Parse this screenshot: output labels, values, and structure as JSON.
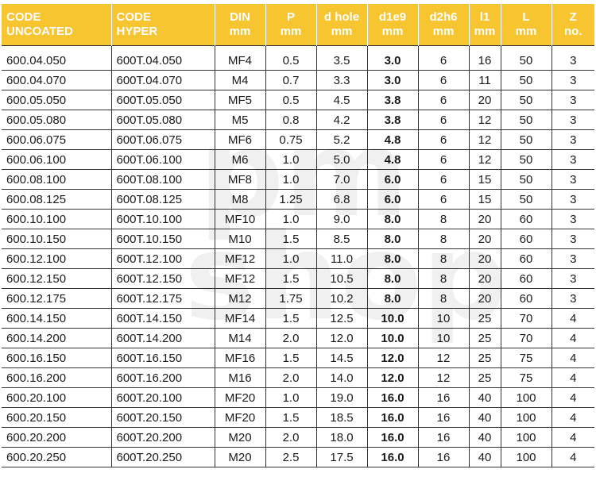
{
  "columns": [
    {
      "line1": "CODE",
      "line2": "UNCOATED"
    },
    {
      "line1": "CODE",
      "line2": "HYPER"
    },
    {
      "line1": "DIN",
      "line2": "mm"
    },
    {
      "line1": "P",
      "line2": "mm"
    },
    {
      "line1": "d hole",
      "line2": "mm"
    },
    {
      "line1": "d1e9",
      "line2": "mm"
    },
    {
      "line1": "d2h6",
      "line2": "mm"
    },
    {
      "line1": "l1",
      "line2": "mm"
    },
    {
      "line1": "L",
      "line2": "mm"
    },
    {
      "line1": "Z",
      "line2": "no."
    }
  ],
  "rows": [
    [
      "600.04.050",
      "600T.04.050",
      "MF4",
      "0.5",
      "3.5",
      "3.0",
      "6",
      "16",
      "50",
      "3"
    ],
    [
      "600.04.070",
      "600T.04.070",
      "M4",
      "0.7",
      "3.3",
      "3.0",
      "6",
      "11",
      "50",
      "3"
    ],
    [
      "600.05.050",
      "600T.05.050",
      "MF5",
      "0.5",
      "4.5",
      "3.8",
      "6",
      "20",
      "50",
      "3"
    ],
    [
      "600.05.080",
      "600T.05.080",
      "M5",
      "0.8",
      "4.2",
      "3.8",
      "6",
      "12",
      "50",
      "3"
    ],
    [
      "600.06.075",
      "600T.06.075",
      "MF6",
      "0.75",
      "5.2",
      "4.8",
      "6",
      "12",
      "50",
      "3"
    ],
    [
      "600.06.100",
      "600T.06.100",
      "M6",
      "1.0",
      "5.0",
      "4.8",
      "6",
      "12",
      "50",
      "3"
    ],
    [
      "600.08.100",
      "600T.08.100",
      "MF8",
      "1.0",
      "7.0",
      "6.0",
      "6",
      "15",
      "50",
      "3"
    ],
    [
      "600.08.125",
      "600T.08.125",
      "M8",
      "1.25",
      "6.8",
      "6.0",
      "6",
      "15",
      "50",
      "3"
    ],
    [
      "600.10.100",
      "600T.10.100",
      "MF10",
      "1.0",
      "9.0",
      "8.0",
      "8",
      "20",
      "60",
      "3"
    ],
    [
      "600.10.150",
      "600T.10.150",
      "M10",
      "1.5",
      "8.5",
      "8.0",
      "8",
      "20",
      "60",
      "3"
    ],
    [
      "600.12.100",
      "600T.12.100",
      "MF12",
      "1.0",
      "11.0",
      "8.0",
      "8",
      "20",
      "60",
      "3"
    ],
    [
      "600.12.150",
      "600T.12.150",
      "MF12",
      "1.5",
      "10.5",
      "8.0",
      "8",
      "20",
      "60",
      "3"
    ],
    [
      "600.12.175",
      "600T.12.175",
      "M12",
      "1.75",
      "10.2",
      "8.0",
      "8",
      "20",
      "60",
      "3"
    ],
    [
      "600.14.150",
      "600T.14.150",
      "MF14",
      "1.5",
      "12.5",
      "10.0",
      "10",
      "25",
      "70",
      "4"
    ],
    [
      "600.14.200",
      "600T.14.200",
      "M14",
      "2.0",
      "12.0",
      "10.0",
      "10",
      "25",
      "70",
      "4"
    ],
    [
      "600.16.150",
      "600T.16.150",
      "MF16",
      "1.5",
      "14.5",
      "12.0",
      "12",
      "25",
      "75",
      "4"
    ],
    [
      "600.16.200",
      "600T.16.200",
      "M16",
      "2.0",
      "14.0",
      "12.0",
      "12",
      "25",
      "75",
      "4"
    ],
    [
      "600.20.100",
      "600T.20.100",
      "MF20",
      "1.0",
      "19.0",
      "16.0",
      "16",
      "40",
      "100",
      "4"
    ],
    [
      "600.20.150",
      "600T.20.150",
      "MF20",
      "1.5",
      "18.5",
      "16.0",
      "16",
      "40",
      "100",
      "4"
    ],
    [
      "600.20.200",
      "600T.20.200",
      "M20",
      "2.0",
      "18.0",
      "16.0",
      "16",
      "40",
      "100",
      "4"
    ],
    [
      "600.20.250",
      "600T.20.250",
      "M20",
      "2.5",
      "17.5",
      "16.0",
      "16",
      "40",
      "100",
      "4"
    ]
  ],
  "watermark": {
    "line1": "pm",
    "line2": "shop"
  },
  "colors": {
    "header_bg": "#f7c530",
    "header_text": "#ffffff",
    "grid": "#333333"
  }
}
